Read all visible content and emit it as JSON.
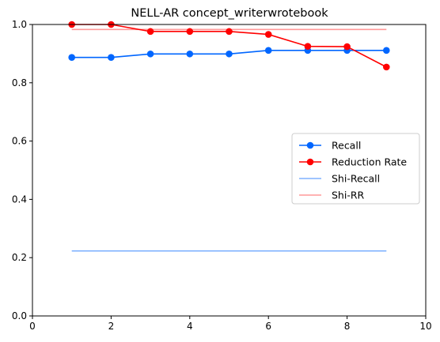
{
  "chart_data": {
    "type": "line",
    "title": "NELL-AR concept_writerwrotebook",
    "xlabel": "",
    "ylabel": "",
    "xlim": [
      0,
      10
    ],
    "ylim": [
      0,
      1.0
    ],
    "xticks": [
      0,
      2,
      4,
      6,
      8,
      10
    ],
    "yticks": [
      0.0,
      0.2,
      0.4,
      0.6,
      0.8,
      1.0
    ],
    "xtick_labels": [
      "0",
      "2",
      "4",
      "6",
      "8",
      "10"
    ],
    "ytick_labels": [
      "0.0",
      "0.2",
      "0.4",
      "0.6",
      "0.8",
      "1.0"
    ],
    "grid": false,
    "legend_position": "center-right",
    "series": [
      {
        "name": "Recall",
        "color": "#0066ff",
        "marker": "circle",
        "opacity": 1.0,
        "x": [
          1,
          2,
          3,
          4,
          5,
          6,
          7,
          8,
          9
        ],
        "y": [
          0.887,
          0.887,
          0.899,
          0.899,
          0.899,
          0.911,
          0.911,
          0.911,
          0.911
        ]
      },
      {
        "name": "Reduction Rate",
        "color": "#ff0000",
        "marker": "circle",
        "opacity": 1.0,
        "x": [
          1,
          2,
          3,
          4,
          5,
          6,
          7,
          8,
          9
        ],
        "y": [
          1.0,
          1.0,
          0.976,
          0.976,
          0.976,
          0.966,
          0.925,
          0.924,
          0.854
        ]
      },
      {
        "name": "Shi-Recall",
        "color": "#0066ff",
        "marker": "none",
        "opacity": 0.5,
        "x": [
          1,
          9
        ],
        "y": [
          0.223,
          0.223
        ]
      },
      {
        "name": "Shi-RR",
        "color": "#ff0000",
        "marker": "none",
        "opacity": 0.4,
        "x": [
          1,
          9
        ],
        "y": [
          0.983,
          0.983
        ]
      }
    ]
  }
}
